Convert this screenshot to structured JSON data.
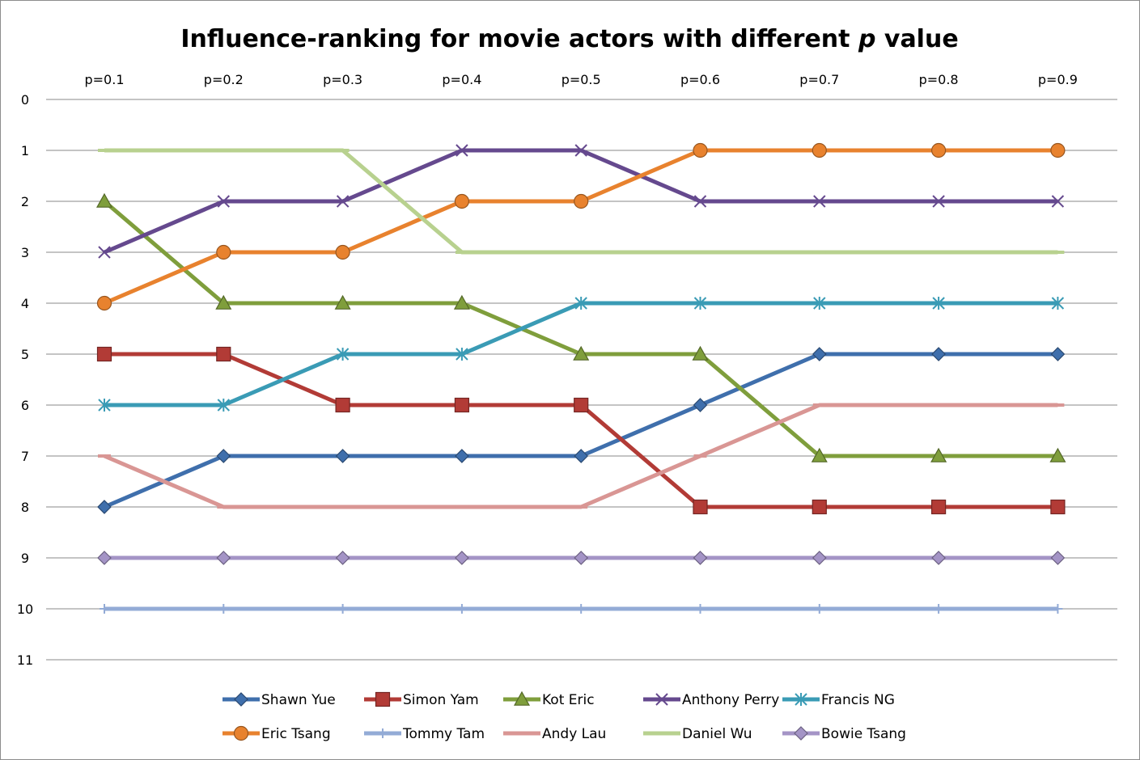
{
  "chart_data": {
    "type": "line",
    "title": {
      "prefix": "Influence-ranking for movie actors with different ",
      "italic": "p",
      "suffix": " value"
    },
    "categories": [
      "p=0.1",
      "p=0.2",
      "p=0.3",
      "p=0.4",
      "p=0.5",
      "p=0.6",
      "p=0.7",
      "p=0.8",
      "p=0.9"
    ],
    "y_ticks": [
      0,
      1,
      2,
      3,
      4,
      5,
      6,
      7,
      8,
      9,
      10,
      11
    ],
    "ylim": [
      0,
      11
    ],
    "y_reversed": true,
    "x_axis_position": "top",
    "grid": true,
    "legend_position": "bottom",
    "series": [
      {
        "name": "Shawn Yue",
        "color": "#3f6fac",
        "marker": "diamond",
        "values": [
          8,
          7,
          7,
          7,
          7,
          6,
          5,
          5,
          5
        ]
      },
      {
        "name": "Simon Yam",
        "color": "#b23b36",
        "marker": "square",
        "values": [
          5,
          5,
          6,
          6,
          6,
          8,
          8,
          8,
          8
        ]
      },
      {
        "name": "Kot Eric",
        "color": "#7f9e3c",
        "marker": "triangle",
        "values": [
          2,
          4,
          4,
          4,
          5,
          5,
          7,
          7,
          7
        ]
      },
      {
        "name": "Anthony Perry",
        "color": "#65498e",
        "marker": "x",
        "values": [
          3,
          2,
          2,
          1,
          1,
          2,
          2,
          2,
          2
        ]
      },
      {
        "name": "Francis NG",
        "color": "#3a9bb5",
        "marker": "star",
        "values": [
          6,
          6,
          5,
          5,
          4,
          4,
          4,
          4,
          4
        ]
      },
      {
        "name": "Eric Tsang",
        "color": "#e8822e",
        "marker": "circle",
        "values": [
          4,
          3,
          3,
          2,
          2,
          1,
          1,
          1,
          1
        ]
      },
      {
        "name": "Tommy Tam",
        "color": "#93abd6",
        "marker": "plus",
        "values": [
          10,
          10,
          10,
          10,
          10,
          10,
          10,
          10,
          10
        ]
      },
      {
        "name": "Andy Lau",
        "color": "#d99694",
        "marker": "dash",
        "values": [
          7,
          8,
          8,
          8,
          8,
          7,
          6,
          6,
          6
        ]
      },
      {
        "name": "Daniel Wu",
        "color": "#b8d18f",
        "marker": "dash",
        "values": [
          1,
          1,
          1,
          3,
          3,
          3,
          3,
          3,
          3
        ]
      },
      {
        "name": "Bowie Tsang",
        "color": "#a494c6",
        "marker": "diamond",
        "values": [
          9,
          9,
          9,
          9,
          9,
          9,
          9,
          9,
          9
        ]
      }
    ]
  }
}
